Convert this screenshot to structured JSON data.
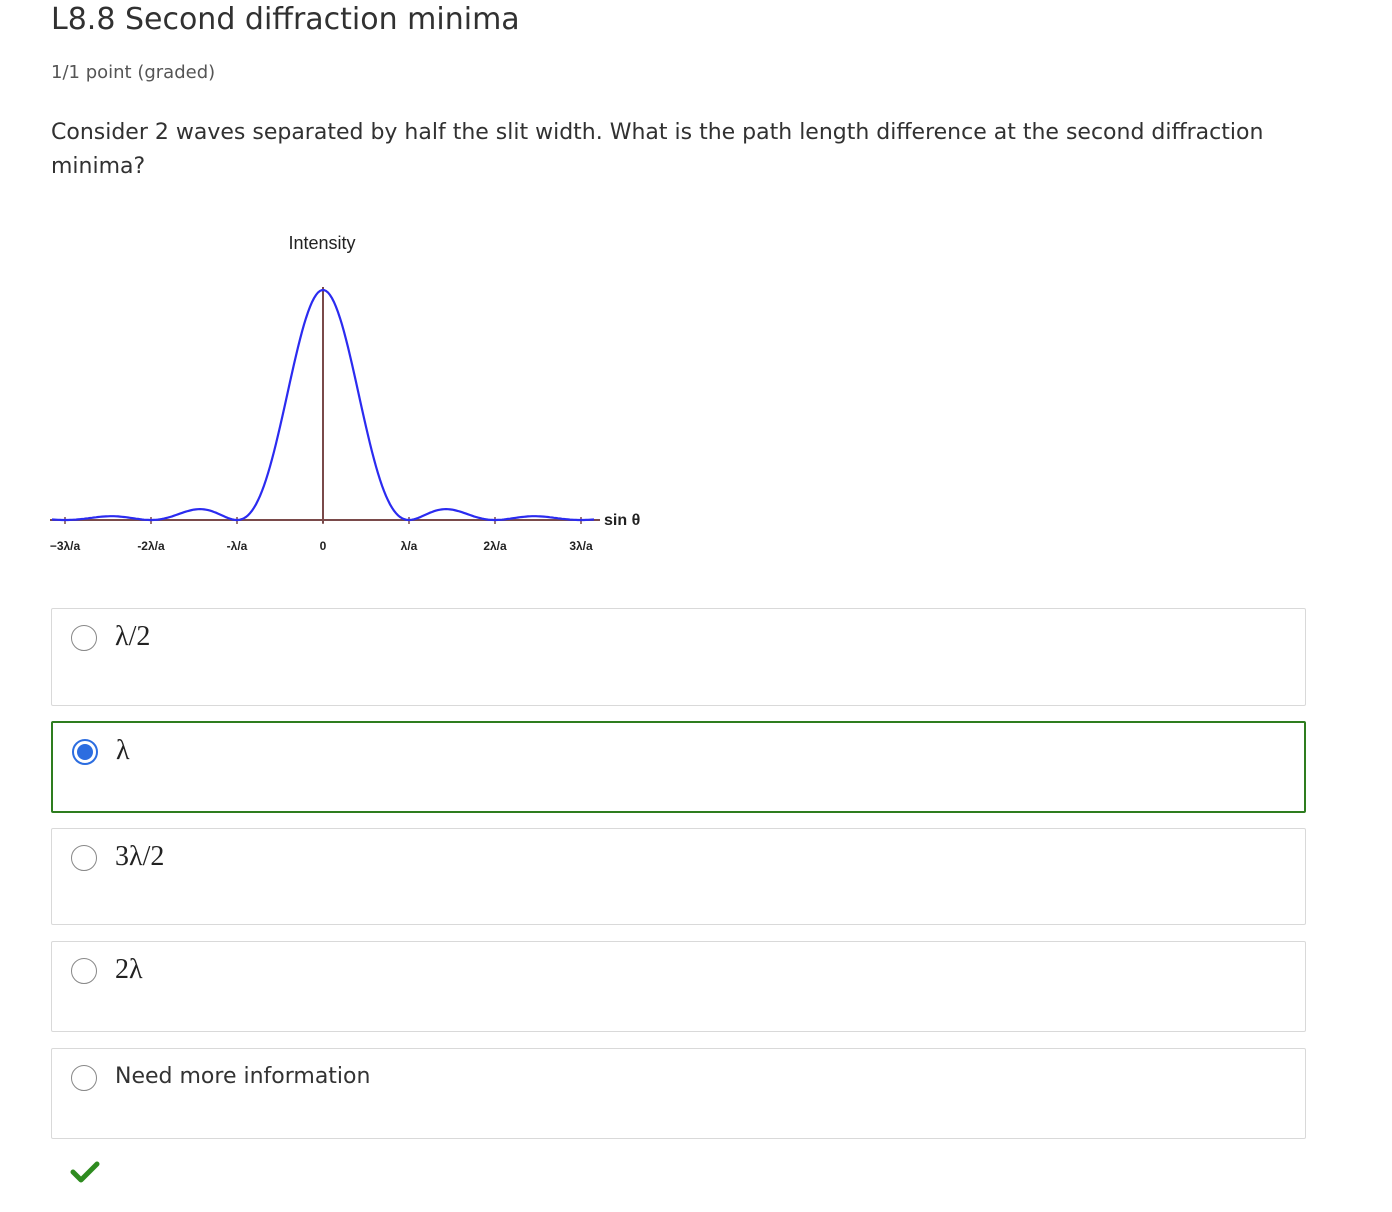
{
  "header": {
    "title": "L8.8 Second diffraction minima",
    "score": "1/1 point (graded)"
  },
  "question": "Consider 2 waves separated by half the slit width. What is the path length difference at the second diffraction minima?",
  "figure": {
    "y_label": "Intensity",
    "x_label": "sin θ",
    "x_ticks": [
      "−3λ/a",
      "-2λ/a",
      "-λ/a",
      "0",
      "λ/a",
      "2λ/a",
      "3λ/a"
    ]
  },
  "options": [
    {
      "label": "λ/2",
      "selected": false
    },
    {
      "label": "λ",
      "selected": true
    },
    {
      "label": "3λ/2",
      "selected": false
    },
    {
      "label": "2λ",
      "selected": false
    },
    {
      "label": "Need more information",
      "selected": false
    }
  ]
}
